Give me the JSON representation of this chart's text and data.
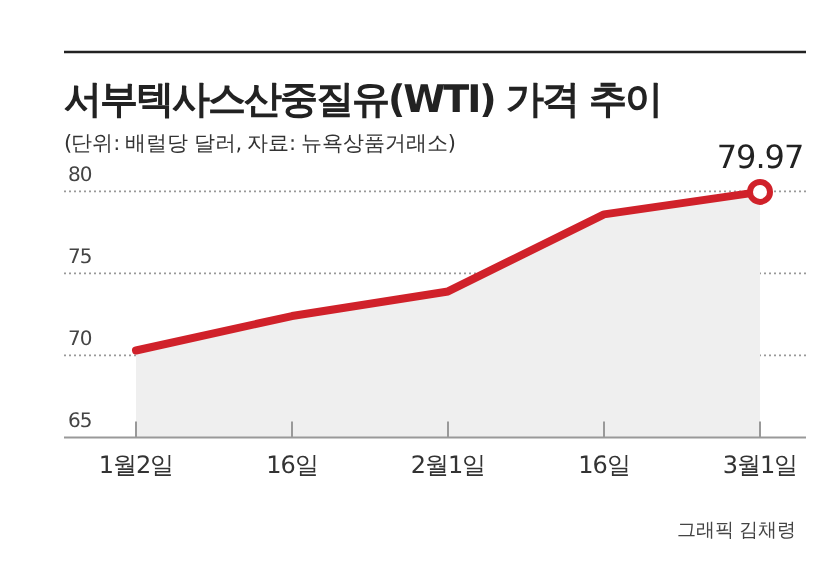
{
  "chart_data": {
    "type": "area",
    "title": "서부텍사스산중질유(WTI) 가격 추이",
    "subtitle": "(단위: 배럴당 달러, 자료: 뉴욕상품거래소)",
    "categories": [
      "1월2일",
      "16일",
      "2월1일",
      "16일",
      "3월1일"
    ],
    "series": [
      {
        "color": "#d0212a",
        "values": [
          70.3,
          72.4,
          73.9,
          78.6,
          79.97
        ]
      }
    ],
    "ylim": [
      65,
      80
    ],
    "yticks": [
      65,
      70,
      75,
      80
    ],
    "grid": "y",
    "line_style": "solid",
    "marker": "none",
    "annotations": [
      {
        "text": "79.97",
        "x": "3월1일",
        "y": 79.97
      },
      "그래픽 김채령"
    ]
  }
}
